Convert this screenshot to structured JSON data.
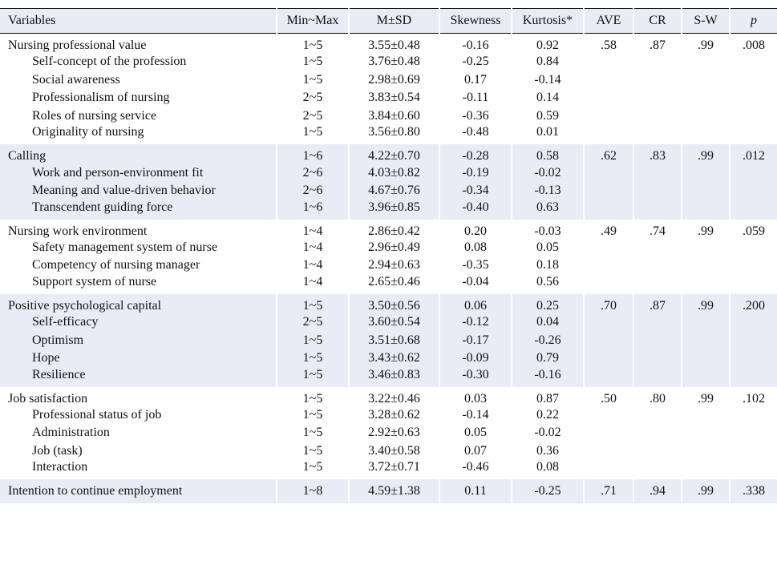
{
  "table": {
    "columns": [
      "Variables",
      "Min~Max",
      "M±SD",
      "Skewness",
      "Kurtosis*",
      "AVE",
      "CR",
      "S-W",
      "p"
    ],
    "groups": [
      {
        "rows": [
          [
            "Nursing professional value",
            "1~5",
            "3.55±0.48",
            "-0.16",
            "0.92",
            ".58",
            ".87",
            ".99",
            ".008"
          ],
          [
            "Self-concept of the profession",
            "1~5",
            "3.76±0.48",
            "-0.25",
            "0.84"
          ],
          [
            "Social awareness",
            "1~5",
            "2.98±0.69",
            "0.17",
            "-0.14"
          ],
          [
            "Professionalism of nursing",
            "2~5",
            "3.83±0.54",
            "-0.11",
            "0.14"
          ],
          [
            "Roles of nursing service",
            "2~5",
            "3.84±0.60",
            "-0.36",
            "0.59"
          ],
          [
            "Originality of nursing",
            "1~5",
            "3.56±0.80",
            "-0.48",
            "0.01"
          ]
        ]
      },
      {
        "rows": [
          [
            "Calling",
            "1~6",
            "4.22±0.70",
            "-0.28",
            "0.58",
            ".62",
            ".83",
            ".99",
            ".012"
          ],
          [
            "Work and person-environment fit",
            "2~6",
            "4.03±0.82",
            "-0.19",
            "-0.02"
          ],
          [
            "Meaning and value-driven behavior",
            "2~6",
            "4.67±0.76",
            "-0.34",
            "-0.13"
          ],
          [
            "Transcendent guiding force",
            "1~6",
            "3.96±0.85",
            "-0.40",
            "0.63"
          ]
        ]
      },
      {
        "rows": [
          [
            "Nursing work environment",
            "1~4",
            "2.86±0.42",
            "0.20",
            "-0.03",
            ".49",
            ".74",
            ".99",
            ".059"
          ],
          [
            "Safety management system of nurse",
            "1~4",
            "2.96±0.49",
            "0.08",
            "0.05"
          ],
          [
            "Competency of nursing manager",
            "1~4",
            "2.94±0.63",
            "-0.35",
            "0.18"
          ],
          [
            "Support system of nurse",
            "1~4",
            "2.65±0.46",
            "-0.04",
            "0.56"
          ]
        ]
      },
      {
        "rows": [
          [
            "Positive psychological capital",
            "1~5",
            "3.50±0.56",
            "0.06",
            "0.25",
            ".70",
            ".87",
            ".99",
            ".200"
          ],
          [
            "Self-efficacy",
            "2~5",
            "3.60±0.54",
            "-0.12",
            "0.04"
          ],
          [
            "Optimism",
            "1~5",
            "3.51±0.68",
            "-0.17",
            "-0.26"
          ],
          [
            "Hope",
            "1~5",
            "3.43±0.62",
            "-0.09",
            "0.79"
          ],
          [
            "Resilience",
            "1~5",
            "3.46±0.83",
            "-0.30",
            "-0.16"
          ]
        ]
      },
      {
        "rows": [
          [
            "Job satisfaction",
            "1~5",
            "3.22±0.46",
            "0.03",
            "0.87",
            ".50",
            ".80",
            ".99",
            ".102"
          ],
          [
            "Professional status of job",
            "1~5",
            "3.28±0.62",
            "-0.14",
            "0.22"
          ],
          [
            "Administration",
            "1~5",
            "2.92±0.63",
            "0.05",
            "-0.02"
          ],
          [
            "Job (task)",
            "1~5",
            "3.40±0.58",
            "0.07",
            "0.36"
          ],
          [
            "Interaction",
            "1~5",
            "3.72±0.71",
            "-0.46",
            "0.08"
          ]
        ]
      },
      {
        "rows": [
          [
            "Intention to continue employment",
            "1~8",
            "4.59±1.38",
            "0.11",
            "-0.25",
            ".71",
            ".94",
            ".99",
            ".338"
          ]
        ]
      }
    ]
  }
}
